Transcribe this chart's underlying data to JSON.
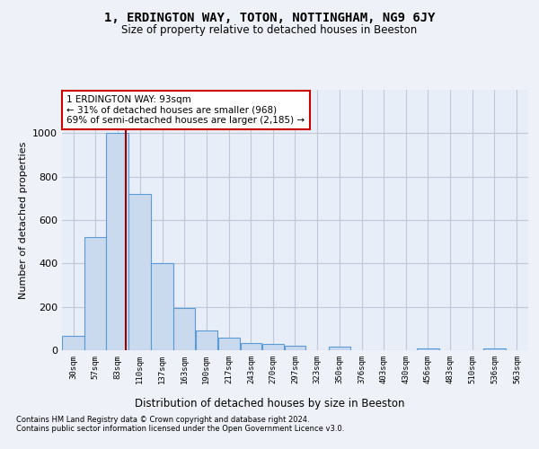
{
  "title1": "1, ERDINGTON WAY, TOTON, NOTTINGHAM, NG9 6JY",
  "title2": "Size of property relative to detached houses in Beeston",
  "xlabel": "Distribution of detached houses by size in Beeston",
  "ylabel": "Number of detached properties",
  "bin_labels": [
    "30sqm",
    "57sqm",
    "83sqm",
    "110sqm",
    "137sqm",
    "163sqm",
    "190sqm",
    "217sqm",
    "243sqm",
    "270sqm",
    "297sqm",
    "323sqm",
    "350sqm",
    "376sqm",
    "403sqm",
    "430sqm",
    "456sqm",
    "483sqm",
    "510sqm",
    "536sqm",
    "563sqm"
  ],
  "bin_edges": [
    16.5,
    43.5,
    69.5,
    96.5,
    123.5,
    150.5,
    176.5,
    203.5,
    230.5,
    256.5,
    283.5,
    309.5,
    336.5,
    363.5,
    389.5,
    416.5,
    442.5,
    469.5,
    496.5,
    522.5,
    549.5,
    576.5
  ],
  "bar_values": [
    65,
    520,
    1000,
    720,
    400,
    195,
    90,
    60,
    35,
    30,
    20,
    0,
    15,
    0,
    0,
    0,
    10,
    0,
    0,
    10,
    0
  ],
  "bar_color": "#c9d9ee",
  "bar_edge_color": "#5b9bd5",
  "property_size": 93,
  "property_line_color": "#990000",
  "annotation_text": "1 ERDINGTON WAY: 93sqm\n← 31% of detached houses are smaller (968)\n69% of semi-detached houses are larger (2,185) →",
  "annotation_box_color": "#ffffff",
  "annotation_edge_color": "#cc0000",
  "ylim": [
    0,
    1200
  ],
  "yticks": [
    0,
    200,
    400,
    600,
    800,
    1000
  ],
  "footer1": "Contains HM Land Registry data © Crown copyright and database right 2024.",
  "footer2": "Contains public sector information licensed under the Open Government Licence v3.0.",
  "bg_color": "#eef2f8",
  "plot_bg_color": "#e8eef8",
  "grid_color": "#c0c8d8"
}
